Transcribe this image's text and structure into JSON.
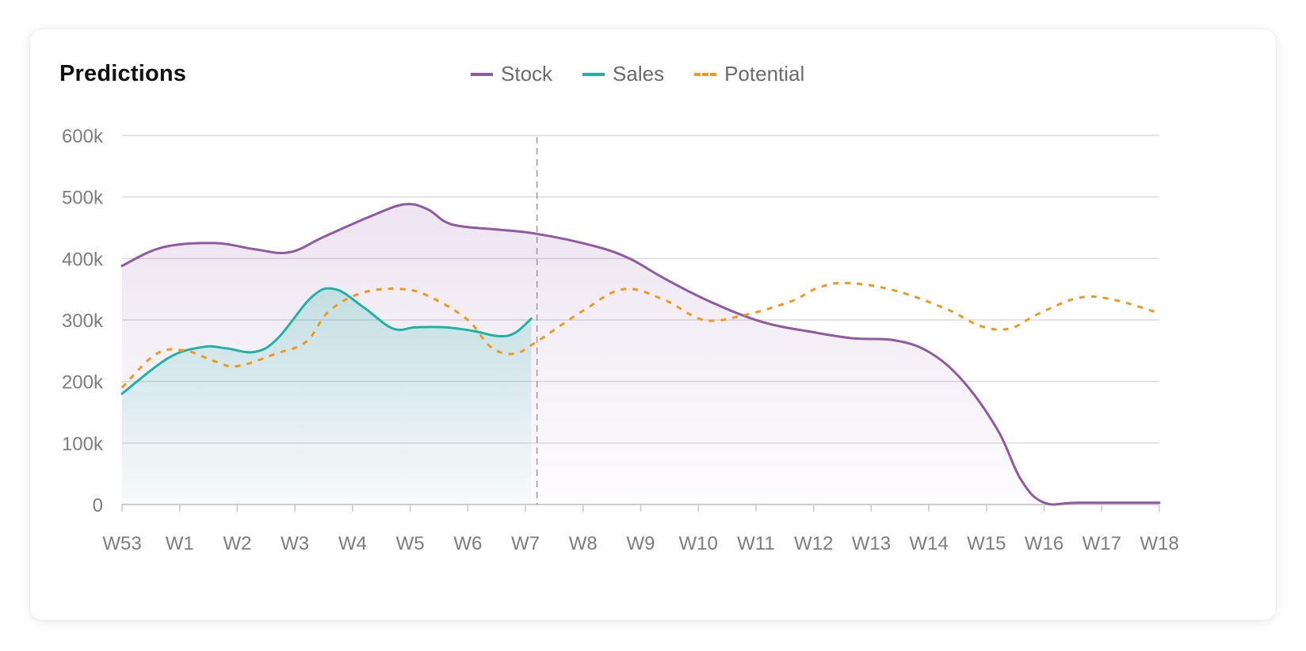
{
  "title": "Predictions",
  "chart_data": {
    "type": "line",
    "title": "Predictions",
    "xlabel": "",
    "ylabel": "",
    "categories": [
      "W53",
      "W1",
      "W2",
      "W3",
      "W4",
      "W5",
      "W6",
      "W7",
      "W8",
      "W9",
      "W10",
      "W11",
      "W12",
      "W13",
      "W14",
      "W15",
      "W16",
      "W17",
      "W18"
    ],
    "y_ticks": [
      "0",
      "100k",
      "200k",
      "300k",
      "400k",
      "500k",
      "600k"
    ],
    "ylim": [
      0,
      600000
    ],
    "grid": true,
    "legend_position": "top",
    "series": [
      {
        "name": "Stock",
        "color": "#8e5aa0",
        "style": "solid",
        "fill": true,
        "points": [
          [
            0,
            388000
          ],
          [
            0.7,
            418000
          ],
          [
            1.6,
            425000
          ],
          [
            2.3,
            415000
          ],
          [
            2.9,
            410000
          ],
          [
            3.5,
            435000
          ],
          [
            4.3,
            468000
          ],
          [
            4.9,
            488000
          ],
          [
            5.3,
            480000
          ],
          [
            5.6,
            460000
          ],
          [
            5.9,
            452000
          ],
          [
            6.5,
            447000
          ],
          [
            7.2,
            440000
          ],
          [
            8.2,
            420000
          ],
          [
            8.8,
            400000
          ],
          [
            9.4,
            368000
          ],
          [
            10.2,
            330000
          ],
          [
            11.1,
            297000
          ],
          [
            12.0,
            280000
          ],
          [
            12.7,
            270000
          ],
          [
            13.4,
            267000
          ],
          [
            14.0,
            248000
          ],
          [
            14.6,
            200000
          ],
          [
            15.2,
            120000
          ],
          [
            15.6,
            40000
          ],
          [
            16.0,
            3000
          ],
          [
            16.6,
            3000
          ],
          [
            18.0,
            3000
          ]
        ]
      },
      {
        "name": "Sales",
        "color": "#1fb3a6",
        "style": "solid",
        "fill": true,
        "points": [
          [
            0,
            180000
          ],
          [
            0.8,
            238000
          ],
          [
            1.4,
            256000
          ],
          [
            1.8,
            254000
          ],
          [
            2.3,
            248000
          ],
          [
            2.7,
            270000
          ],
          [
            3.3,
            338000
          ],
          [
            3.7,
            350000
          ],
          [
            4.2,
            320000
          ],
          [
            4.7,
            286000
          ],
          [
            5.1,
            288000
          ],
          [
            5.6,
            288000
          ],
          [
            6.1,
            282000
          ],
          [
            6.5,
            274000
          ],
          [
            6.8,
            278000
          ],
          [
            7.1,
            302000
          ]
        ]
      },
      {
        "name": "Potential",
        "color": "#f29a18",
        "style": "dashed",
        "fill": false,
        "points": [
          [
            0,
            190000
          ],
          [
            0.6,
            245000
          ],
          [
            1.1,
            250000
          ],
          [
            1.6,
            233000
          ],
          [
            2.0,
            225000
          ],
          [
            2.7,
            246000
          ],
          [
            3.2,
            265000
          ],
          [
            3.6,
            315000
          ],
          [
            4.2,
            345000
          ],
          [
            4.9,
            350000
          ],
          [
            5.4,
            335000
          ],
          [
            6.0,
            300000
          ],
          [
            6.4,
            256000
          ],
          [
            6.8,
            245000
          ],
          [
            7.2,
            265000
          ],
          [
            8.0,
            315000
          ],
          [
            8.7,
            350000
          ],
          [
            9.4,
            333000
          ],
          [
            10.1,
            300000
          ],
          [
            10.8,
            308000
          ],
          [
            11.6,
            330000
          ],
          [
            12.1,
            353000
          ],
          [
            12.6,
            360000
          ],
          [
            13.4,
            348000
          ],
          [
            14.3,
            318000
          ],
          [
            14.9,
            290000
          ],
          [
            15.4,
            286000
          ],
          [
            15.9,
            310000
          ],
          [
            16.6,
            336000
          ],
          [
            17.2,
            333000
          ],
          [
            18.0,
            311000
          ]
        ]
      }
    ],
    "marker_x": 7.2
  }
}
